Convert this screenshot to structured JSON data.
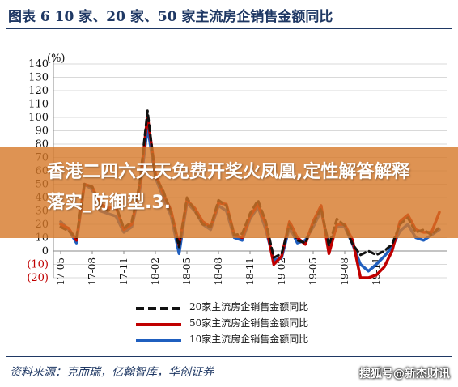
{
  "figure": {
    "title": "图表 6    10 家、20 家、50 家主流房企销售金额同比",
    "overlay_text": "香港二四六天天免费开奖火凤凰,定性解答解释落实_防御型.3.",
    "source": "资料来源：克而瑞，亿翰智库，华创证券",
    "watermark": "搜狐号@新杰财讯"
  },
  "chart_data": {
    "type": "line",
    "unit_label": "(%)",
    "ylim": [
      -20,
      140
    ],
    "yticks": [
      140,
      130,
      120,
      110,
      100,
      90,
      80,
      70,
      60,
      50,
      40,
      30,
      20,
      10,
      0,
      -10,
      -20
    ],
    "ytick_labels": [
      "140",
      "130",
      "120",
      "110",
      "100",
      "90",
      "80",
      "70",
      "60",
      "50",
      "40",
      "30",
      "20",
      "10",
      "0",
      "(10)",
      "(20)"
    ],
    "xtick_labels": [
      "17-05",
      "17-08",
      "17-11",
      "18-02",
      "18-05",
      "18-08",
      "18-11",
      "19-02",
      "19-05",
      "19-08",
      "19-11"
    ],
    "grid": true,
    "legend_position": "bottom",
    "series": [
      {
        "name": "20家主流房企销售金额同比",
        "color": "#111111",
        "style": "dashed",
        "values": [
          18,
          15,
          10,
          50,
          48,
          34,
          30,
          34,
          17,
          22,
          50,
          105,
          55,
          45,
          28,
          3,
          40,
          30,
          20,
          18,
          38,
          34,
          12,
          13,
          28,
          38,
          22,
          -5,
          -2,
          20,
          8,
          6,
          20,
          32,
          4,
          24,
          19,
          5,
          -3,
          0,
          -3,
          0,
          5,
          20,
          25,
          14,
          16,
          12,
          18
        ]
      },
      {
        "name": "50家主流房企销售金额同比",
        "color": "#c00000",
        "style": "solid",
        "values": [
          20,
          17,
          8,
          50,
          48,
          35,
          32,
          33,
          16,
          20,
          48,
          101,
          58,
          43,
          30,
          4,
          38,
          32,
          22,
          18,
          36,
          35,
          12,
          10,
          26,
          35,
          20,
          -10,
          -4,
          22,
          10,
          5,
          22,
          34,
          -2,
          20,
          20,
          8,
          -20,
          -20,
          -18,
          -12,
          0,
          22,
          27,
          16,
          14,
          14,
          29
        ]
      },
      {
        "name": "10家主流房企销售金额同比",
        "color": "#1f5fbf",
        "style": "solid",
        "values": [
          22,
          16,
          6,
          50,
          46,
          30,
          28,
          26,
          14,
          18,
          44,
          93,
          55,
          40,
          26,
          -2,
          36,
          30,
          20,
          16,
          34,
          30,
          10,
          8,
          24,
          33,
          16,
          -7,
          -5,
          18,
          6,
          8,
          18,
          30,
          4,
          18,
          18,
          5,
          -10,
          -15,
          -10,
          -4,
          3,
          15,
          20,
          10,
          8,
          12,
          16
        ]
      }
    ]
  }
}
